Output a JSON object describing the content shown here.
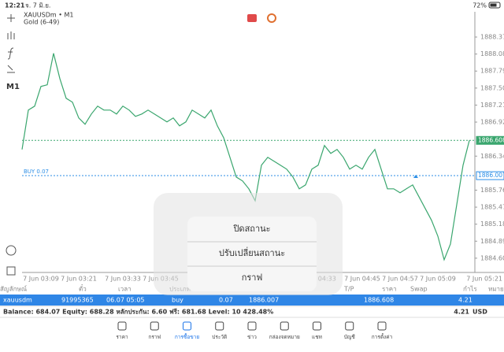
{
  "status_bar": {
    "time": "12:21",
    "date": "จ. 7 มิ.ย.",
    "battery": "72%"
  },
  "toolbar": {
    "timeframe": "M1"
  },
  "chart_data": {
    "type": "line",
    "title": "XAUUSDm • M1",
    "subtitle": "Gold (6-49)",
    "color": "#3aa66e",
    "categories": [
      null,
      null,
      null,
      "7 Jun 03:09",
      null,
      null,
      null,
      null,
      null,
      "7 Jun 03:21",
      null,
      null,
      null,
      null,
      null,
      null,
      "7 Jun 03:33",
      null,
      null,
      null,
      null,
      null,
      "7 Jun 03:45",
      null,
      null,
      null,
      null,
      null,
      null,
      null,
      null,
      null,
      null,
      null,
      null,
      null,
      null,
      null,
      null,
      null,
      null,
      null,
      null,
      null,
      null,
      null,
      null,
      "7 Jun 04:33",
      null,
      null,
      null,
      null,
      null,
      null,
      "7 Jun 04:45",
      null,
      null,
      null,
      null,
      null,
      "7 Jun 04:57",
      null,
      null,
      null,
      null,
      null,
      "7 Jun 05:09",
      null,
      null,
      null,
      null,
      "7 Jun 05:21"
    ],
    "values": [
      1886.453,
      1887.125,
      1887.192,
      1887.528,
      1887.555,
      1888.092,
      1887.662,
      1887.326,
      1887.259,
      1886.991,
      1886.883,
      1887.058,
      1887.192,
      1887.125,
      1887.125,
      1887.058,
      1887.192,
      1887.125,
      1887.017,
      1887.058,
      1887.125,
      1887.058,
      1886.991,
      1886.923,
      1886.991,
      1886.856,
      1886.923,
      1887.125,
      1887.058,
      1886.991,
      1887.125,
      1886.856,
      1886.655,
      1886.319,
      1885.983,
      1885.916,
      1885.782,
      1885.58,
      1886.185,
      1886.319,
      1886.252,
      1886.185,
      1886.118,
      1885.983,
      1885.782,
      1885.849,
      1886.118,
      1886.185,
      1886.52,
      1886.386,
      1886.453,
      1886.319,
      1886.118,
      1886.185,
      1886.118,
      1886.319,
      1886.453,
      1886.118,
      1885.782,
      1885.782,
      1885.715,
      1885.782,
      1885.849,
      1885.648,
      1885.446,
      1885.245,
      1884.976,
      1884.573,
      1884.842,
      1885.513,
      1886.185,
      1886.608
    ],
    "ylim": [
      1884.37,
      1888.8
    ],
    "yticks": [
      {
        "value": 1884.6,
        "label": "1884.600"
      },
      {
        "value": 1884.89,
        "label": "1884.890"
      },
      {
        "value": 1885.18,
        "label": "1885.180"
      },
      {
        "value": 1885.47,
        "label": "1885.470"
      },
      {
        "value": 1885.76,
        "label": "1885.760"
      },
      {
        "value": 1886.34,
        "label": "1886.340"
      },
      {
        "value": 1886.92,
        "label": "1886.920"
      },
      {
        "value": 1887.21,
        "label": "1887.210"
      },
      {
        "value": 1887.5,
        "label": "1887.500"
      },
      {
        "value": 1887.79,
        "label": "1887.790"
      },
      {
        "value": 1888.08,
        "label": "1888.080"
      },
      {
        "value": 1888.37,
        "label": "1888.370"
      }
    ],
    "price_lines": [
      {
        "value": 1886.608,
        "color": "#3aa66e"
      },
      {
        "name": "BUY 0.07",
        "value": 1886.007,
        "color": "#2b8ee6"
      }
    ],
    "grid": false
  },
  "table": {
    "headers": [
      "สัญลักษณ์",
      "ตั๋ว",
      "เวลา",
      "ประเภท",
      "T/P",
      "ราคา",
      "Swap",
      "กำไร",
      "หมายเหตุ"
    ],
    "row": [
      "xauusdm",
      "91995365",
      "06.07 05:05",
      "buy",
      "0.07",
      "1886.007",
      "1886.608",
      "4.21"
    ]
  },
  "summary": {
    "text": "Balance: 684.07 Equity: 688.28 หลักประกัน: 6.60 ฟรี: 681.68 Level: 10 428.48%",
    "profit": "4.21",
    "currency": "USD"
  },
  "menu": {
    "items": [
      "ปิดสถานะ",
      "ปรับเปลี่ยนสถานะ",
      "กราฟ"
    ]
  },
  "tabs": [
    "ราคา",
    "กราฟ",
    "การซื้อขาย",
    "ประวัติ",
    "ข่าว",
    "กล่องจดหมาย",
    "แชท",
    "บัญชี",
    "การตั้งค่า"
  ]
}
